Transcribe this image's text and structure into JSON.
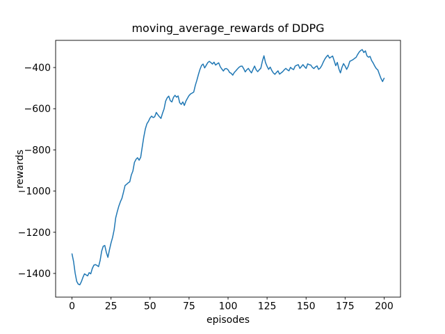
{
  "figure": {
    "background": "#ffffff",
    "text_color": "#000000"
  },
  "chart_data": {
    "type": "line",
    "title": "moving_average_rewards of DDPG",
    "xlabel": "episodes",
    "ylabel": "rewards",
    "legend": null,
    "grid": false,
    "line_color": "#1f77b4",
    "line_width": 1.5,
    "xlim": [
      -10.5,
      210.5
    ],
    "ylim": [
      -1515,
      -268
    ],
    "xticks": [
      0,
      25,
      50,
      75,
      100,
      125,
      150,
      175,
      200
    ],
    "xtick_labels": [
      "0",
      "25",
      "50",
      "75",
      "100",
      "125",
      "150",
      "175",
      "200"
    ],
    "yticks": [
      -1400,
      -1200,
      -1000,
      -800,
      -600,
      -400
    ],
    "ytick_labels": [
      "−1400",
      "−1200",
      "−1000",
      "−800",
      "−600",
      "−400"
    ],
    "x_start": 0,
    "x_step": 1,
    "y": [
      -1305,
      -1342,
      -1398,
      -1438,
      -1452,
      -1455,
      -1440,
      -1419,
      -1402,
      -1407,
      -1412,
      -1396,
      -1402,
      -1376,
      -1360,
      -1357,
      -1361,
      -1367,
      -1338,
      -1292,
      -1268,
      -1264,
      -1298,
      -1322,
      -1285,
      -1252,
      -1225,
      -1188,
      -1130,
      -1100,
      -1073,
      -1052,
      -1035,
      -1005,
      -973,
      -967,
      -960,
      -955,
      -922,
      -903,
      -861,
      -846,
      -838,
      -850,
      -836,
      -786,
      -737,
      -698,
      -673,
      -661,
      -645,
      -636,
      -643,
      -639,
      -618,
      -629,
      -639,
      -647,
      -622,
      -601,
      -563,
      -547,
      -539,
      -561,
      -567,
      -545,
      -535,
      -544,
      -538,
      -571,
      -579,
      -567,
      -584,
      -563,
      -549,
      -536,
      -528,
      -524,
      -519,
      -487,
      -462,
      -434,
      -409,
      -390,
      -383,
      -402,
      -389,
      -376,
      -370,
      -376,
      -383,
      -374,
      -388,
      -382,
      -377,
      -396,
      -407,
      -417,
      -406,
      -405,
      -411,
      -424,
      -428,
      -437,
      -424,
      -416,
      -407,
      -399,
      -394,
      -393,
      -405,
      -421,
      -411,
      -404,
      -416,
      -426,
      -409,
      -393,
      -411,
      -420,
      -411,
      -403,
      -369,
      -343,
      -376,
      -394,
      -409,
      -398,
      -414,
      -426,
      -433,
      -424,
      -416,
      -432,
      -426,
      -420,
      -411,
      -404,
      -411,
      -416,
      -399,
      -406,
      -410,
      -393,
      -389,
      -386,
      -404,
      -395,
      -386,
      -396,
      -404,
      -382,
      -386,
      -388,
      -399,
      -405,
      -397,
      -392,
      -409,
      -403,
      -391,
      -374,
      -359,
      -348,
      -340,
      -354,
      -349,
      -344,
      -367,
      -391,
      -375,
      -406,
      -426,
      -399,
      -381,
      -393,
      -409,
      -394,
      -370,
      -366,
      -362,
      -356,
      -351,
      -337,
      -325,
      -317,
      -313,
      -327,
      -319,
      -343,
      -350,
      -346,
      -366,
      -378,
      -393,
      -405,
      -412,
      -433,
      -453,
      -468,
      -452
    ]
  }
}
